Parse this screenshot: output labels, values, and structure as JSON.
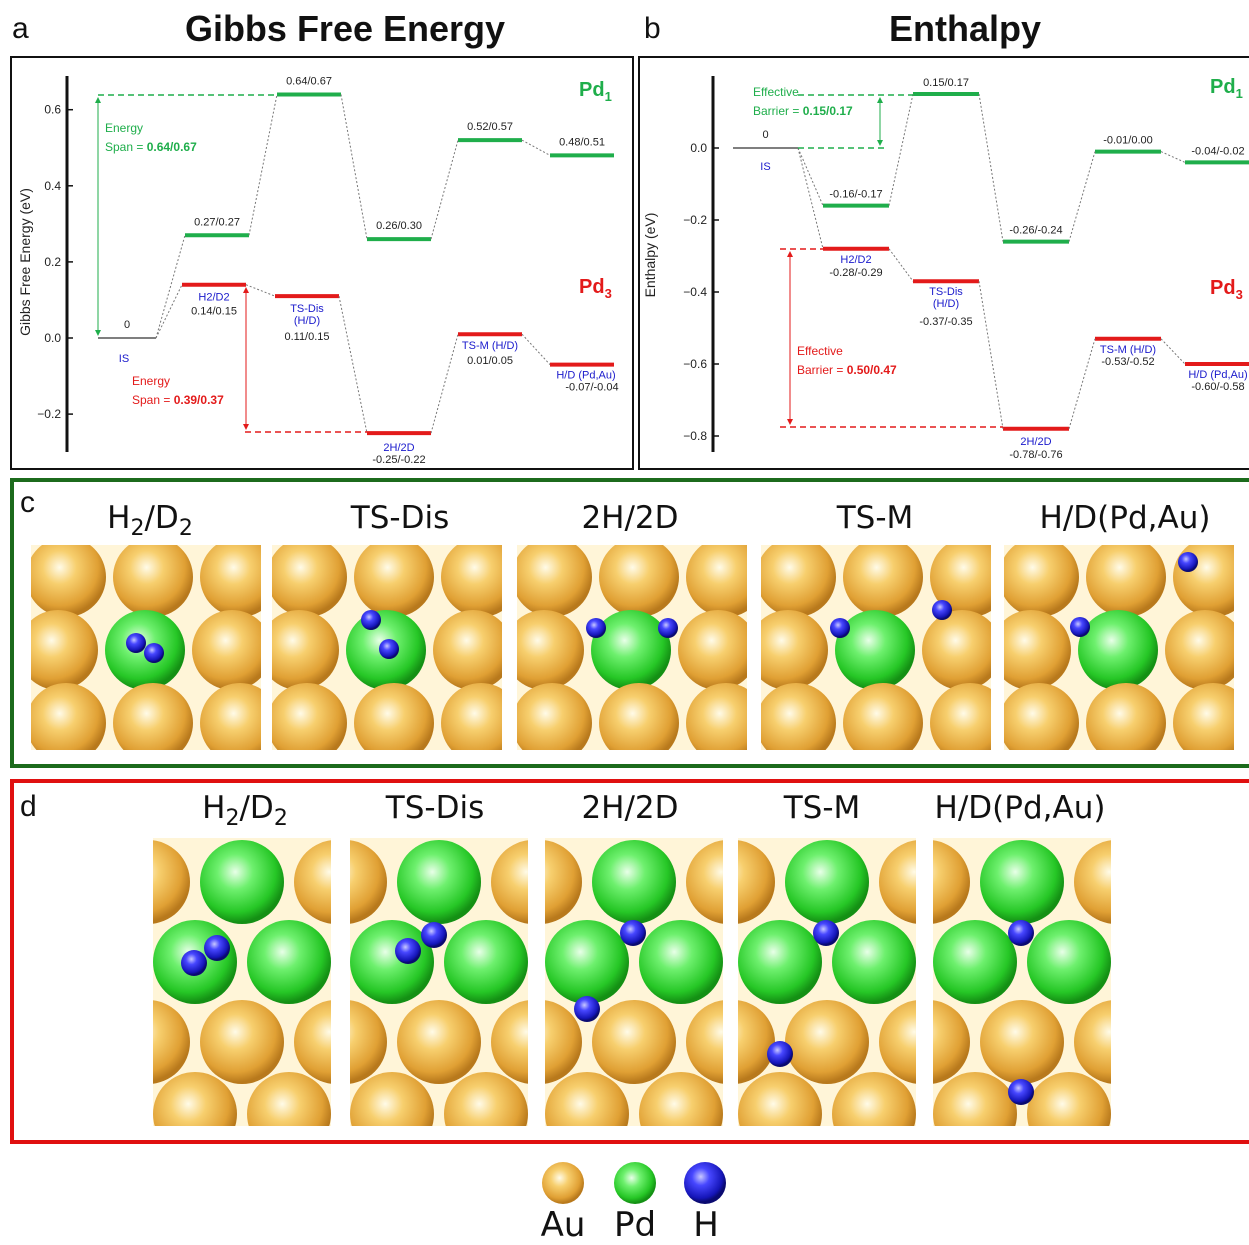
{
  "panels": {
    "a": {
      "letter": "a",
      "title": "Gibbs Free Energy"
    },
    "b": {
      "letter": "b",
      "title": "Enthalpy"
    },
    "c": {
      "letter": "c"
    },
    "d": {
      "letter": "d"
    }
  },
  "chart_data": [
    {
      "type": "energy-profile",
      "title": "Gibbs Free Energy",
      "ylabel": "Gibbs Free Energy (eV)",
      "ylim": [
        -0.3,
        0.7
      ],
      "yticks": [
        "0.6",
        "0.4",
        "0.2",
        "0.0",
        "−0.2"
      ],
      "ytick_values": [
        0.6,
        0.4,
        0.2,
        0.0,
        -0.2
      ],
      "series": [
        {
          "name": "Pd1",
          "color": "#1fae4b",
          "levels": [
            {
              "value": 0.0,
              "label": "0",
              "state": "IS"
            },
            {
              "value": 0.27,
              "label": "0.27/0.27"
            },
            {
              "value": 0.64,
              "label": "0.64/0.67"
            },
            {
              "value": 0.26,
              "label": "0.26/0.30"
            },
            {
              "value": 0.52,
              "label": "0.52/0.57"
            },
            {
              "value": 0.48,
              "label": "0.48/0.51"
            }
          ]
        },
        {
          "name": "Pd3",
          "color": "#e31a1a",
          "levels": [
            {
              "value": 0.14,
              "label": "0.14/0.15",
              "state": "H2/D2"
            },
            {
              "value": 0.11,
              "label": "0.11/0.15",
              "state": "TS-Dis (H/D)"
            },
            {
              "value": -0.25,
              "label": "-0.25/-0.22",
              "state": "2H/2D"
            },
            {
              "value": 0.01,
              "label": "0.01/0.05",
              "state": "TS-M (H/D)"
            },
            {
              "value": -0.07,
              "label": "-0.07/-0.04",
              "state": "H/D (Pd,Au)"
            }
          ]
        }
      ],
      "annotations": {
        "pd1_span_line1": "Energy",
        "pd1_span_line2": "Span = ",
        "pd1_span_value": "0.64/0.67",
        "pd3_span_line1": "Energy",
        "pd3_span_line2": "Span = ",
        "pd3_span_value": "0.39/0.37"
      },
      "series_labels": {
        "pd1": "Pd",
        "pd1_sub": "1",
        "pd3": "Pd",
        "pd3_sub": "3"
      }
    },
    {
      "type": "energy-profile",
      "title": "Enthalpy",
      "ylabel": "Enthalpy (eV)",
      "ylim": [
        -0.85,
        0.2
      ],
      "yticks": [
        "0.0",
        "−0.2",
        "−0.4",
        "−0.6",
        "−0.8"
      ],
      "ytick_values": [
        0.0,
        -0.2,
        -0.4,
        -0.6,
        -0.8
      ],
      "series": [
        {
          "name": "Pd1",
          "color": "#1fae4b",
          "levels": [
            {
              "value": 0.0,
              "label": "0",
              "state": "IS"
            },
            {
              "value": -0.16,
              "label": "-0.16/-0.17"
            },
            {
              "value": 0.15,
              "label": "0.15/0.17"
            },
            {
              "value": -0.26,
              "label": "-0.26/-0.24"
            },
            {
              "value": -0.01,
              "label": "-0.01/0.00"
            },
            {
              "value": -0.04,
              "label": "-0.04/-0.02"
            }
          ]
        },
        {
          "name": "Pd3",
          "color": "#e31a1a",
          "levels": [
            {
              "value": -0.28,
              "label": "-0.28/-0.29",
              "state": "H2/D2"
            },
            {
              "value": -0.37,
              "label": "-0.37/-0.35",
              "state": "TS-Dis (H/D)"
            },
            {
              "value": -0.78,
              "label": "-0.78/-0.76",
              "state": "2H/2D"
            },
            {
              "value": -0.53,
              "label": "-0.53/-0.52",
              "state": "TS-M (H/D)"
            },
            {
              "value": -0.6,
              "label": "-0.60/-0.58",
              "state": "H/D (Pd,Au)"
            }
          ]
        }
      ],
      "annotations": {
        "pd1_barrier_line1": "Effective",
        "pd1_barrier_line2": "Barrier = ",
        "pd1_barrier_value": "0.15/0.17",
        "pd3_barrier_line1": "Effective",
        "pd3_barrier_line2": "Barrier = ",
        "pd3_barrier_value": "0.50/0.47"
      },
      "series_labels": {
        "pd1": "Pd",
        "pd1_sub": "1",
        "pd3": "Pd",
        "pd3_sub": "3"
      }
    }
  ],
  "structures": {
    "c": {
      "titles": [
        {
          "main": "H",
          "sub1": "2",
          "mid": "/D",
          "sub2": "2"
        },
        {
          "main": "TS-Dis"
        },
        {
          "main": "2H/2D"
        },
        {
          "main": "TS-M"
        },
        {
          "main": "H/D(Pd,Au)"
        }
      ]
    },
    "d": {
      "titles": [
        {
          "main": "H",
          "sub1": "2",
          "mid": "/D",
          "sub2": "2"
        },
        {
          "main": "TS-Dis"
        },
        {
          "main": "2H/2D"
        },
        {
          "main": "TS-M"
        },
        {
          "main": "H/D(Pd,Au)"
        }
      ]
    }
  },
  "legend": {
    "items": [
      {
        "label": "Au",
        "color": "#e8a53a"
      },
      {
        "label": "Pd",
        "color": "#2fcf2f"
      },
      {
        "label": "H",
        "color": "#1c1ccc"
      }
    ]
  }
}
